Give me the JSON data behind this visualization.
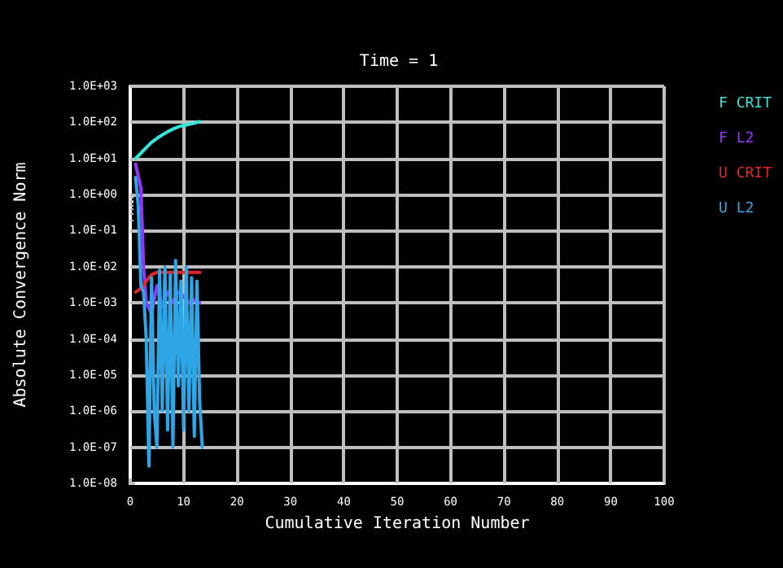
{
  "chart_data": {
    "type": "line",
    "title": "Time = 1",
    "xlabel": "Cumulative Iteration Number",
    "ylabel": "Absolute Convergence Norm",
    "xlim": [
      0,
      100
    ],
    "xticks": [
      0,
      10,
      20,
      30,
      40,
      50,
      60,
      70,
      80,
      90,
      100
    ],
    "ylim": [
      1e-08,
      1000
    ],
    "log": "y",
    "yticks": [
      {
        "value": 1e-08,
        "label": "1.0E-08"
      },
      {
        "value": 1e-07,
        "label": "1.0E-07"
      },
      {
        "value": 1e-06,
        "label": "1.0E-06"
      },
      {
        "value": 1e-05,
        "label": "1.0E-05"
      },
      {
        "value": 0.0001,
        "label": "1.0E-04"
      },
      {
        "value": 0.001,
        "label": "1.0E-03"
      },
      {
        "value": 0.01,
        "label": "1.0E-02"
      },
      {
        "value": 0.1,
        "label": "1.0E-01"
      },
      {
        "value": 1,
        "label": "1.0E+00"
      },
      {
        "value": 10,
        "label": "1.0E+01"
      },
      {
        "value": 100,
        "label": "1.0E+02"
      },
      {
        "value": 1000,
        "label": "1.0E+03"
      }
    ],
    "grid": true,
    "legend": "right",
    "marker": "none",
    "line_style": "solid",
    "series": [
      {
        "name": "F CRIT",
        "color": "#33e6d9",
        "x": [
          1,
          2,
          3,
          4,
          5,
          6,
          7,
          8,
          9,
          10,
          11,
          12,
          13
        ],
        "values": [
          10,
          14,
          20,
          28,
          36,
          45,
          55,
          65,
          75,
          82,
          88,
          95,
          105
        ]
      },
      {
        "name": "F L2",
        "color": "#9933ff",
        "x": [
          1,
          2,
          2.5,
          3,
          4,
          5,
          6,
          7,
          8,
          9,
          10,
          11,
          12,
          13
        ],
        "values": [
          7,
          1.5,
          0.01,
          0.001,
          0.0005,
          0.003,
          0.0008,
          0.002,
          0.001,
          0.002,
          0.0015,
          0.001,
          0.0012,
          0.001
        ]
      },
      {
        "name": "U CRIT",
        "color": "#e62626",
        "x": [
          1,
          2,
          3,
          4,
          5,
          6,
          7,
          8,
          9,
          10,
          11,
          12,
          13
        ],
        "values": [
          0.002,
          0.0025,
          0.004,
          0.006,
          0.007,
          0.007,
          0.007,
          0.007,
          0.007,
          0.007,
          0.007,
          0.007,
          0.007
        ]
      },
      {
        "name": "U L2",
        "color": "#2ea6e6",
        "x": [
          1,
          1.5,
          2,
          2.5,
          3,
          3.5,
          4,
          4.5,
          5,
          5.5,
          6,
          6.5,
          7,
          7.5,
          8,
          8.5,
          9,
          9.5,
          10,
          10.5,
          11,
          11.5,
          12,
          12.5,
          13,
          13.5
        ],
        "values": [
          3,
          0.5,
          0.003,
          0.002,
          0.0001,
          3e-08,
          0.005,
          1e-06,
          1e-07,
          0.008,
          1e-06,
          0.01,
          3e-07,
          0.006,
          1e-07,
          0.015,
          5e-06,
          0.004,
          3e-07,
          0.01,
          1e-06,
          0.005,
          2e-07,
          0.004,
          2e-06,
          1e-07
        ]
      }
    ]
  }
}
